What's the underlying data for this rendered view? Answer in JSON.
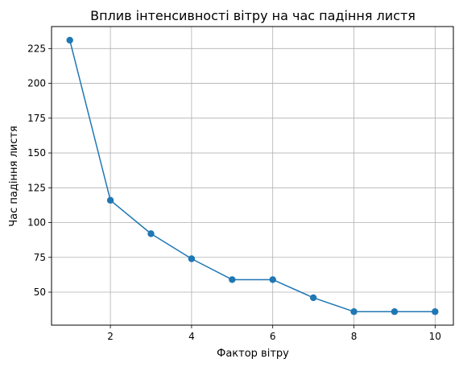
{
  "chart_data": {
    "type": "line",
    "title": "Вплив інтенсивності вітру на час падіння листя",
    "xlabel": "Фактор вітру",
    "ylabel": "Час падіння листя",
    "x": [
      1,
      2,
      3,
      4,
      5,
      6,
      7,
      8,
      9,
      10
    ],
    "y": [
      231,
      116,
      92,
      74,
      59,
      59,
      46,
      36,
      36,
      36
    ],
    "xlim": [
      0.55,
      10.45
    ],
    "ylim": [
      26.3,
      240.8
    ],
    "xticks": [
      2,
      4,
      6,
      8,
      10
    ],
    "yticks": [
      50,
      75,
      100,
      125,
      150,
      175,
      200,
      225
    ],
    "grid": true,
    "marker": "circle",
    "colors": {
      "line": "#1f77b4",
      "grid": "#b0b0b0",
      "axes": "#000000"
    }
  }
}
